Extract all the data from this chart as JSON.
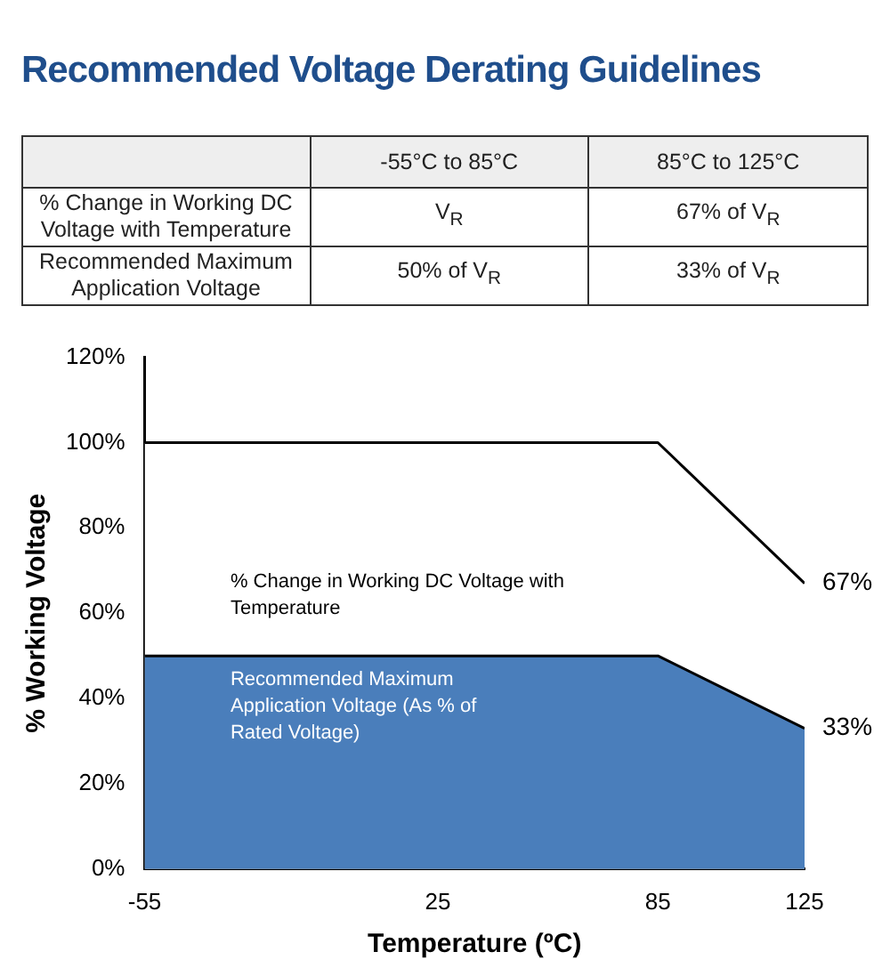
{
  "chart_data": {
    "type": "area",
    "title": "Recommended Voltage Derating Guidelines",
    "xlabel": "Temperature (ºC)",
    "ylabel": "% Working Voltage",
    "x": [
      -55,
      85,
      125
    ],
    "series": [
      {
        "color": "#ffffff",
        "values": [
          100,
          100,
          67
        ],
        "value_labels": [
          null,
          null,
          "67%"
        ]
      },
      {
        "color": "#4a7ebb",
        "values": [
          50,
          50,
          33
        ],
        "value_labels": [
          null,
          null,
          "33%"
        ]
      }
    ],
    "xlim": [
      -55,
      125
    ],
    "xticks": [
      -55,
      25,
      85,
      125
    ],
    "ylim": [
      0,
      120
    ],
    "yticks": [
      {
        "value": 0,
        "label": "0%"
      },
      {
        "value": 20,
        "label": "20%"
      },
      {
        "value": 40,
        "label": "40%"
      },
      {
        "value": 60,
        "label": "60%"
      },
      {
        "value": 80,
        "label": "80%"
      },
      {
        "value": 100,
        "label": "100%"
      },
      {
        "value": 120,
        "label": "120%"
      }
    ],
    "legend": false,
    "annotations": [
      "-55°C to 85°C",
      "85°C to 125°C",
      "% Change in Working DC Voltage with Temperature",
      "V$_{R}$",
      "67% of V$_{R}$",
      "Recommended Maximum Application Voltage",
      "50% of V$_{R}$",
      "33% of V$_{R}$",
      "% Change in Working DC Voltage with Temperature",
      "Recommended Maximum Application Voltage (As % of Rated Voltage)"
    ]
  }
}
